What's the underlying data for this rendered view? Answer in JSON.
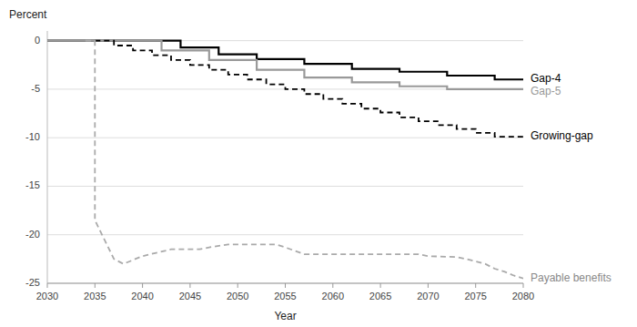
{
  "chart_data": {
    "type": "line",
    "xlabel": "Year",
    "ylabel": "Percent",
    "xlim": [
      2030,
      2080
    ],
    "ylim": [
      -25,
      1
    ],
    "xticks": [
      2030,
      2035,
      2040,
      2045,
      2050,
      2055,
      2060,
      2065,
      2070,
      2075,
      2080
    ],
    "yticks": [
      0,
      -5,
      -10,
      -15,
      -20,
      -25
    ],
    "grid": true,
    "series": [
      {
        "name": "Gap-4",
        "color": "#000000",
        "line_style": "solid",
        "x": [
          2030,
          2044,
          2044,
          2048,
          2048,
          2052,
          2052,
          2057,
          2057,
          2062,
          2062,
          2067,
          2067,
          2072,
          2072,
          2077,
          2077,
          2080
        ],
        "values": [
          0,
          0,
          -0.7,
          -0.7,
          -1.4,
          -1.4,
          -1.9,
          -1.9,
          -2.4,
          -2.4,
          -2.9,
          -2.9,
          -3.2,
          -3.2,
          -3.6,
          -3.6,
          -4.0,
          -4.0
        ]
      },
      {
        "name": "Gap-5",
        "color": "#999999",
        "line_style": "solid",
        "x": [
          2030,
          2042,
          2042,
          2047,
          2047,
          2052,
          2052,
          2057,
          2057,
          2062,
          2062,
          2067,
          2067,
          2072,
          2072,
          2075,
          2075,
          2080
        ],
        "values": [
          0,
          0,
          -1.0,
          -1.0,
          -2.0,
          -2.0,
          -3.0,
          -3.0,
          -3.8,
          -3.8,
          -4.3,
          -4.3,
          -4.7,
          -4.7,
          -5.0,
          -5.0,
          -5.0,
          -5.0
        ]
      },
      {
        "name": "Growing-gap",
        "color": "#000000",
        "line_style": "dashed",
        "x": [
          2035,
          2037,
          2037,
          2039,
          2039,
          2041,
          2041,
          2043,
          2043,
          2045,
          2045,
          2047,
          2047,
          2049,
          2049,
          2051,
          2051,
          2053,
          2053,
          2055,
          2055,
          2057,
          2057,
          2059,
          2059,
          2061,
          2061,
          2063,
          2063,
          2065,
          2065,
          2067,
          2067,
          2069,
          2069,
          2071,
          2071,
          2073,
          2073,
          2075,
          2075,
          2077,
          2077,
          2080
        ],
        "values": [
          0,
          0,
          -0.5,
          -0.5,
          -1.0,
          -1.0,
          -1.5,
          -1.5,
          -2.0,
          -2.0,
          -2.5,
          -2.5,
          -3.0,
          -3.0,
          -3.5,
          -3.5,
          -4.0,
          -4.0,
          -4.5,
          -4.5,
          -5.0,
          -5.0,
          -5.5,
          -5.5,
          -6.0,
          -6.0,
          -6.5,
          -6.5,
          -7.0,
          -7.0,
          -7.4,
          -7.4,
          -7.9,
          -7.9,
          -8.3,
          -8.3,
          -8.7,
          -8.7,
          -9.1,
          -9.1,
          -9.5,
          -9.5,
          -9.9,
          -9.9
        ]
      },
      {
        "name": "Payable benefits",
        "color": "#aaaaaa",
        "line_style": "dashed",
        "x": [
          2034,
          2035,
          2035,
          2037,
          2038,
          2040,
          2043,
          2046,
          2047,
          2049,
          2050,
          2054,
          2055,
          2057,
          2059,
          2062,
          2065,
          2069,
          2070,
          2073,
          2074,
          2076,
          2077,
          2078,
          2079,
          2080
        ],
        "values": [
          0,
          0,
          -18.5,
          -22.5,
          -23.0,
          -22.2,
          -21.5,
          -21.5,
          -21.3,
          -21.0,
          -21.0,
          -21.0,
          -21.3,
          -22.0,
          -22.0,
          -22.0,
          -22.0,
          -22.0,
          -22.2,
          -22.3,
          -22.5,
          -23.0,
          -23.5,
          -23.8,
          -24.2,
          -24.5
        ]
      }
    ]
  }
}
